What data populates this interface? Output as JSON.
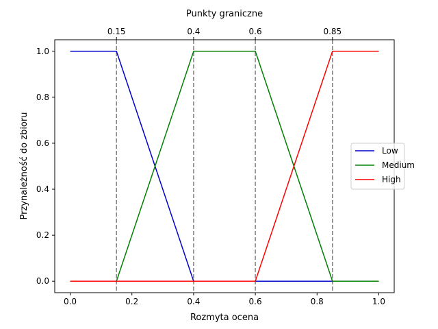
{
  "chart_data": {
    "type": "line",
    "top_axis_title": "Punkty graniczne",
    "xlabel": "Rozmyta ocena",
    "ylabel": "Przynależność do zbioru",
    "xlim": [
      -0.05,
      1.05
    ],
    "ylim": [
      -0.05,
      1.05
    ],
    "xticks": [
      0.0,
      0.2,
      0.4,
      0.6,
      0.8,
      1.0
    ],
    "xtick_labels": [
      "0.0",
      "0.2",
      "0.4",
      "0.6",
      "0.8",
      "1.0"
    ],
    "yticks": [
      0.0,
      0.2,
      0.4,
      0.6,
      0.8,
      1.0
    ],
    "ytick_labels": [
      "0.0",
      "0.2",
      "0.4",
      "0.6",
      "0.8",
      "1.0"
    ],
    "breakpoints": [
      0.15,
      0.4,
      0.6,
      0.85
    ],
    "breakpoint_labels": [
      "0.15",
      "0.4",
      "0.6",
      "0.85"
    ],
    "breakpoint_line_color": "#808080",
    "legend_position": "center-right",
    "grid": false,
    "series": [
      {
        "name": "Low",
        "color": "#0000cc",
        "x": [
          0.0,
          0.15,
          0.4,
          0.6,
          0.85,
          1.0
        ],
        "y": [
          1.0,
          1.0,
          0.0,
          0.0,
          0.0,
          0.0
        ]
      },
      {
        "name": "Medium",
        "color": "#008000",
        "x": [
          0.0,
          0.15,
          0.4,
          0.6,
          0.85,
          1.0
        ],
        "y": [
          0.0,
          0.0,
          1.0,
          1.0,
          0.0,
          0.0
        ]
      },
      {
        "name": "High",
        "color": "#ff0000",
        "x": [
          0.0,
          0.15,
          0.4,
          0.6,
          0.85,
          1.0
        ],
        "y": [
          0.0,
          0.0,
          0.0,
          0.0,
          1.0,
          1.0
        ]
      }
    ]
  }
}
